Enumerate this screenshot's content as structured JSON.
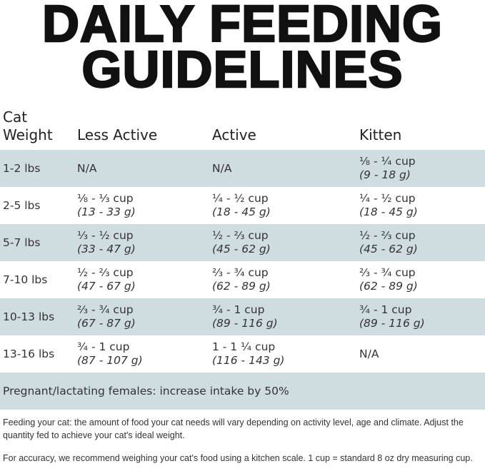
{
  "title": [
    "DAILY FEEDING",
    "GUIDELINES"
  ],
  "headers": [
    "Cat\nWeight",
    "Less Active",
    "Active",
    "Kitten"
  ],
  "rows": [
    {
      "weight": "1-2 lbs",
      "cells": [
        {
          "cup": "N/A"
        },
        {
          "cup": "N/A"
        },
        {
          "cup": "⅛ - ¼ cup",
          "grams": "(9 - 18 g)"
        }
      ]
    },
    {
      "weight": "2-5 lbs",
      "cells": [
        {
          "cup": "⅛ - ⅓ cup",
          "grams": "(13 - 33 g)"
        },
        {
          "cup": "¼ - ½ cup",
          "grams": "(18 - 45 g)"
        },
        {
          "cup": "¼ - ½ cup",
          "grams": "(18 - 45 g)"
        }
      ]
    },
    {
      "weight": "5-7 lbs",
      "cells": [
        {
          "cup": "⅓ - ½ cup",
          "grams": "(33 - 47 g)"
        },
        {
          "cup": "½ - ⅔ cup",
          "grams": "(45 - 62 g)"
        },
        {
          "cup": "½ - ⅔ cup",
          "grams": "(45 - 62 g)"
        }
      ]
    },
    {
      "weight": "7-10 lbs",
      "cells": [
        {
          "cup": "½ - ⅔ cup",
          "grams": "(47 - 67 g)"
        },
        {
          "cup": "⅔ - ¾ cup",
          "grams": "(62 - 89 g)"
        },
        {
          "cup": "⅔ - ¾ cup",
          "grams": "(62 - 89 g)"
        }
      ]
    },
    {
      "weight": "10-13 lbs",
      "cells": [
        {
          "cup": "⅔ - ¾ cup",
          "grams": "(67 - 87 g)"
        },
        {
          "cup": "¾ - 1 cup",
          "grams": "(89 - 116 g)"
        },
        {
          "cup": "¾ - 1 cup",
          "grams": "(89 - 116 g)"
        }
      ]
    },
    {
      "weight": "13-16 lbs",
      "cells": [
        {
          "cup": "¾ - 1 cup",
          "grams": "(87 - 107 g)"
        },
        {
          "cup": "1 - 1 ¼ cup",
          "grams": "(116 - 143 g)"
        },
        {
          "cup": "N/A"
        }
      ]
    }
  ],
  "pregnant_note": "Pregnant/lactating females: increase intake by 50%",
  "notes": [
    "Feeding your cat: the amount of food your cat needs will vary depending on activity level, age and climate. Adjust the quantity fed to achieve your cat's ideal weight.",
    "For accuracy, we recommend weighing your cat's food using a kitchen scale. 1 cup = standard 8 oz dry measuring cup."
  ],
  "colors": {
    "row_shade": "#cfdde1"
  }
}
